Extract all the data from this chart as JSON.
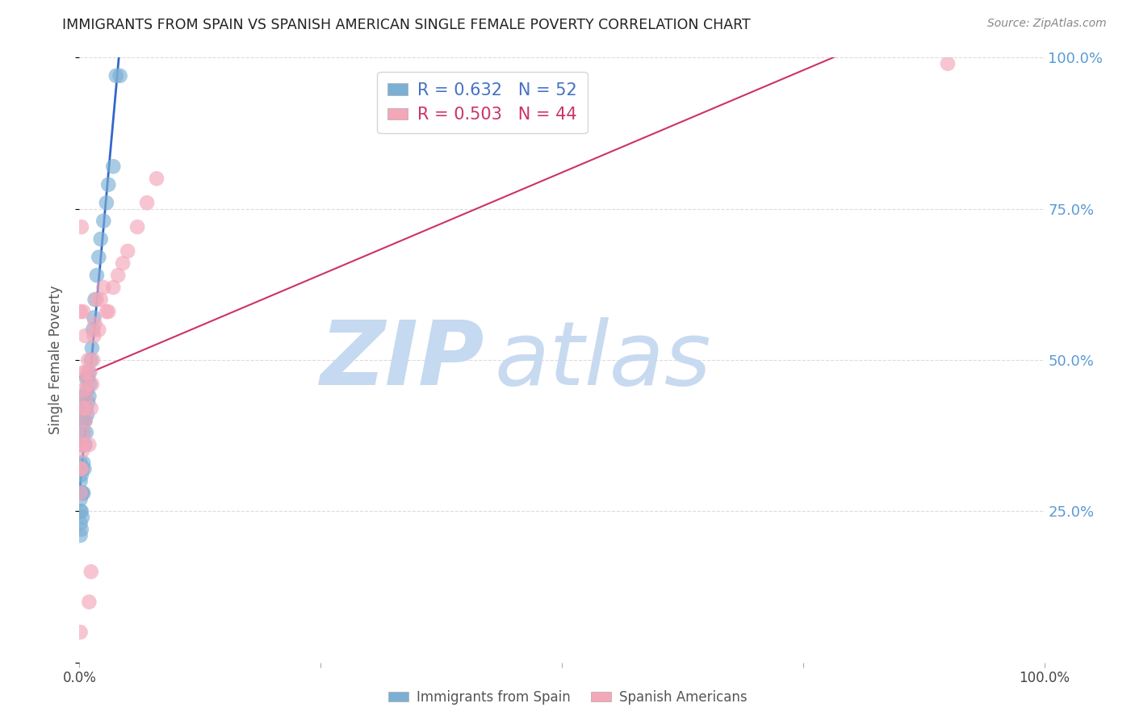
{
  "title": "IMMIGRANTS FROM SPAIN VS SPANISH AMERICAN SINGLE FEMALE POVERTY CORRELATION CHART",
  "source": "Source: ZipAtlas.com",
  "ylabel": "Single Female Poverty",
  "blue_label": "Immigrants from Spain",
  "pink_label": "Spanish Americans",
  "blue_R": 0.632,
  "blue_N": 52,
  "pink_R": 0.503,
  "pink_N": 44,
  "blue_color": "#7bafd4",
  "pink_color": "#f4a7b9",
  "blue_line_color": "#3366cc",
  "pink_line_color": "#cc3366",
  "watermark_zip": "ZIP",
  "watermark_atlas": "atlas",
  "watermark_color": "#d0e4f5",
  "background_color": "#ffffff",
  "grid_color": "#cccccc",
  "title_color": "#222222",
  "right_tick_color": "#5b9bd5",
  "xlim": [
    0.0,
    1.0
  ],
  "ylim": [
    0.0,
    1.0
  ],
  "blue_x": [
    0.001,
    0.001,
    0.001,
    0.001,
    0.001,
    0.001,
    0.001,
    0.002,
    0.002,
    0.002,
    0.002,
    0.002,
    0.003,
    0.003,
    0.003,
    0.003,
    0.003,
    0.004,
    0.004,
    0.004,
    0.004,
    0.005,
    0.005,
    0.005,
    0.005,
    0.006,
    0.006,
    0.006,
    0.007,
    0.007,
    0.007,
    0.008,
    0.008,
    0.009,
    0.009,
    0.01,
    0.01,
    0.011,
    0.012,
    0.013,
    0.014,
    0.015,
    0.016,
    0.018,
    0.02,
    0.022,
    0.025,
    0.028,
    0.03,
    0.035,
    0.038,
    0.042
  ],
  "blue_y": [
    0.21,
    0.23,
    0.25,
    0.27,
    0.3,
    0.33,
    0.36,
    0.22,
    0.25,
    0.28,
    0.31,
    0.36,
    0.24,
    0.28,
    0.32,
    0.36,
    0.4,
    0.28,
    0.33,
    0.38,
    0.42,
    0.32,
    0.36,
    0.4,
    0.44,
    0.36,
    0.4,
    0.44,
    0.38,
    0.42,
    0.47,
    0.41,
    0.45,
    0.43,
    0.47,
    0.44,
    0.48,
    0.46,
    0.5,
    0.52,
    0.55,
    0.57,
    0.6,
    0.64,
    0.67,
    0.7,
    0.73,
    0.76,
    0.79,
    0.82,
    0.97,
    0.97
  ],
  "pink_x": [
    0.001,
    0.001,
    0.001,
    0.002,
    0.002,
    0.002,
    0.003,
    0.003,
    0.004,
    0.004,
    0.004,
    0.005,
    0.005,
    0.005,
    0.006,
    0.006,
    0.007,
    0.007,
    0.008,
    0.009,
    0.01,
    0.011,
    0.012,
    0.013,
    0.014,
    0.015,
    0.016,
    0.018,
    0.02,
    0.022,
    0.025,
    0.028,
    0.03,
    0.035,
    0.04,
    0.045,
    0.05,
    0.06,
    0.07,
    0.08,
    0.01,
    0.012,
    0.9,
    0.001
  ],
  "pink_y": [
    0.28,
    0.32,
    0.58,
    0.32,
    0.36,
    0.72,
    0.35,
    0.42,
    0.38,
    0.45,
    0.58,
    0.36,
    0.42,
    0.48,
    0.4,
    0.54,
    0.44,
    0.48,
    0.46,
    0.5,
    0.36,
    0.48,
    0.42,
    0.46,
    0.5,
    0.54,
    0.56,
    0.6,
    0.55,
    0.6,
    0.62,
    0.58,
    0.58,
    0.62,
    0.64,
    0.66,
    0.68,
    0.72,
    0.76,
    0.8,
    0.1,
    0.15,
    0.99,
    0.05
  ]
}
